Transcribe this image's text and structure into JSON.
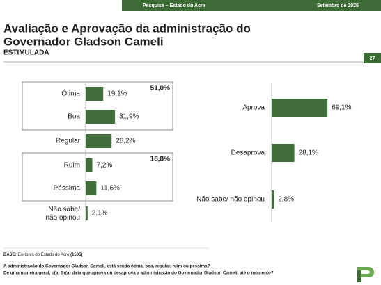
{
  "header": {
    "left": "Pesquisa – Estado do Acre",
    "right": "Setembro de 2025"
  },
  "title_line1": "Avaliação e Aprovação da administração do",
  "title_line2": "Governador Gladson Cameli",
  "subtitle": "ESTIMULADA",
  "page_number": "27",
  "chart_data": [
    {
      "type": "bar",
      "orientation": "horizontal",
      "color": "#3f6e3a",
      "categories": [
        "Ótima",
        "Boa",
        "Regular",
        "Ruim",
        "Péssima",
        "Não sabe/ não opinou"
      ],
      "values": [
        19.1,
        31.9,
        28.2,
        7.2,
        11.6,
        2.1
      ],
      "value_labels": [
        "19,1%",
        "31,9%",
        "28,2%",
        "7,2%",
        "11,6%",
        "2,1%"
      ],
      "group_totals": [
        "51,0%",
        "18,8%"
      ]
    },
    {
      "type": "bar",
      "orientation": "horizontal",
      "color": "#3f6e3a",
      "categories": [
        "Aprova",
        "Desaprova",
        "Não sabe/ não opinou"
      ],
      "values": [
        69.1,
        28.1,
        2.8
      ],
      "value_labels": [
        "69,1%",
        "28,1%",
        "2,8%"
      ]
    }
  ],
  "footer": {
    "base_label": "BASE:",
    "base_text": "Eleitores do Estado do Acre",
    "base_n": "(1505)",
    "question1": "A administração do Governador Gladson Cameli, está sendo ótima, boa, regular, ruim ou péssima?",
    "question2": "De uma maneira geral, o(a) Sr(a) diria que aprova ou desaprova a administração do Governador Gladson Cameli, até o momento?"
  }
}
